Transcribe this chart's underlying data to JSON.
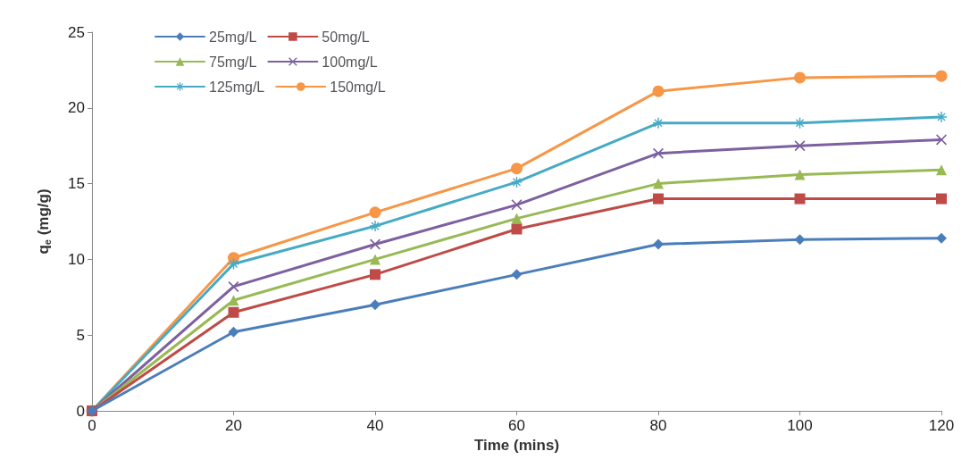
{
  "chart_data": {
    "type": "line",
    "xlabel": "Time (mins)",
    "ylabel": "q$_{e}$ (mg/g)",
    "x": [
      0,
      20,
      40,
      60,
      80,
      100,
      120
    ],
    "xlim": [
      0,
      120
    ],
    "xticks": [
      0,
      20,
      40,
      60,
      80,
      100,
      120
    ],
    "ylim": [
      0,
      25
    ],
    "yticks": [
      0,
      5,
      10,
      15,
      20,
      25
    ],
    "grid": false,
    "legend": "top left",
    "line_style": "solid",
    "series": [
      {
        "name": "25mg/L",
        "color": "#4a7ebb",
        "marker": "diamond",
        "values": [
          0,
          5.2,
          7.0,
          9.0,
          11.0,
          11.3,
          11.4
        ]
      },
      {
        "name": "50mg/L",
        "color": "#be4b48",
        "marker": "square",
        "values": [
          0,
          6.5,
          9.0,
          12.0,
          14.0,
          14.0,
          14.0
        ]
      },
      {
        "name": "75mg/L",
        "color": "#98b954",
        "marker": "triangle",
        "values": [
          0,
          7.3,
          10.0,
          12.7,
          15.0,
          15.6,
          15.9
        ]
      },
      {
        "name": "100mg/L",
        "color": "#7d60a0",
        "marker": "cross",
        "values": [
          0,
          8.2,
          11.0,
          13.6,
          17.0,
          17.5,
          17.9
        ]
      },
      {
        "name": "125mg/L",
        "color": "#46aac5",
        "marker": "star",
        "values": [
          0,
          9.7,
          12.2,
          15.1,
          19.0,
          19.0,
          19.4
        ]
      },
      {
        "name": "150mg/L",
        "color": "#f79646",
        "marker": "circle",
        "values": [
          0,
          10.1,
          13.1,
          16.0,
          21.1,
          22.0,
          22.1
        ]
      }
    ]
  }
}
